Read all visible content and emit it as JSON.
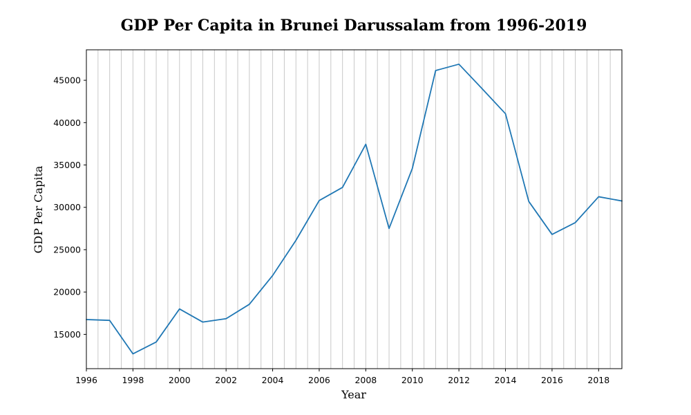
{
  "chart_data": {
    "type": "line",
    "title": "GDP Per Capita in Brunei Darussalam from 1996-2019",
    "xlabel": "Year",
    "ylabel": "GDP Per Capita",
    "x": [
      1996,
      1997,
      1998,
      1999,
      2000,
      2001,
      2002,
      2003,
      2004,
      2005,
      2006,
      2007,
      2008,
      2009,
      2010,
      2011,
      2012,
      2013,
      2014,
      2015,
      2016,
      2017,
      2018,
      2019
    ],
    "series": [
      {
        "values": [
          16750,
          16650,
          12700,
          14100,
          18000,
          16450,
          16850,
          18550,
          21950,
          26100,
          30800,
          32350,
          37450,
          27500,
          34600,
          46150,
          46900,
          44000,
          41050,
          30700,
          26800,
          28200,
          31250,
          30750
        ],
        "color": "#1f77b4"
      }
    ],
    "xlim": [
      1996,
      2019
    ],
    "ylim": [
      10950,
      48600
    ],
    "x_ticks": [
      1996,
      1998,
      2000,
      2002,
      2004,
      2006,
      2008,
      2010,
      2012,
      2014,
      2016,
      2018
    ],
    "y_ticks": [
      15000,
      20000,
      25000,
      30000,
      35000,
      40000,
      45000
    ],
    "grid": "vertical"
  }
}
